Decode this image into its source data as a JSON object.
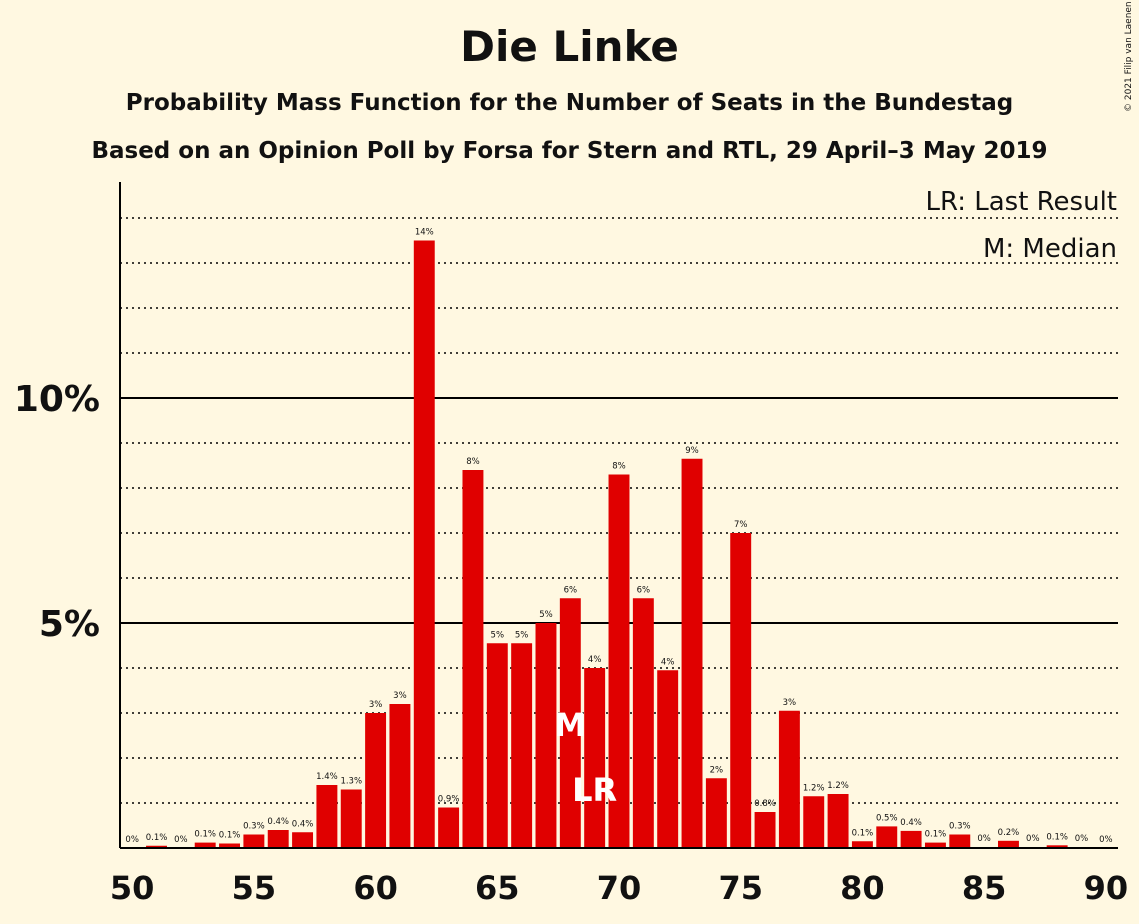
{
  "header": {
    "title": "Die Linke",
    "subtitle": "Probability Mass Function for the Number of Seats in the Bundestag",
    "subtitle2": "Based on an Opinion Poll by Forsa for Stern and RTL, 29 April–3 May 2019",
    "copyright": "© 2021 Filip van Laenen"
  },
  "legend": {
    "last_result": "LR: Last Result",
    "median": "M: Median"
  },
  "chart_data": {
    "type": "bar",
    "x": [
      50,
      51,
      52,
      53,
      54,
      55,
      56,
      57,
      58,
      59,
      60,
      61,
      62,
      63,
      64,
      65,
      66,
      67,
      68,
      69,
      70,
      71,
      72,
      73,
      74,
      75,
      76,
      77,
      78,
      79,
      80,
      81,
      82,
      83,
      84,
      85,
      86,
      87,
      88,
      89,
      90
    ],
    "values": [
      0,
      0.05,
      0,
      0.12,
      0.1,
      0.3,
      0.4,
      0.35,
      1.4,
      1.3,
      3.0,
      3.2,
      13.5,
      0.9,
      8.4,
      4.55,
      4.55,
      5.0,
      5.55,
      4.0,
      8.3,
      5.55,
      3.95,
      8.65,
      1.55,
      7.0,
      0.8,
      3.05,
      1.15,
      1.2,
      0.15,
      0.48,
      0.38,
      0.12,
      0.3,
      0.02,
      0.16,
      0.02,
      0.06,
      0.02,
      0
    ],
    "data_labels": [
      "0%",
      "0.1%",
      "0%",
      "0.1%",
      "0.1%",
      "0.3%",
      "0.4%",
      "0.4%",
      "1.4%",
      "1.3%",
      "3%",
      "3%",
      "14%",
      "0.9%",
      "8%",
      "5%",
      "5%",
      "5%",
      "6%",
      "4%",
      "8%",
      "6%",
      "4%",
      "9%",
      "2%",
      "7%",
      "0.8%",
      "3%",
      "1.2%",
      "1.2%",
      "0.1%",
      "0.5%",
      "0.4%",
      "0.1%",
      "0.3%",
      "0%",
      "0.2%",
      "0%",
      "0.1%",
      "0%",
      "0%"
    ],
    "xticks": [
      "50",
      "55",
      "60",
      "65",
      "70",
      "75",
      "80",
      "85",
      "90"
    ],
    "yticks": [
      "5%",
      "10%"
    ],
    "ylim": [
      0,
      14.8
    ],
    "xlim": [
      49.5,
      90.5
    ],
    "bar_color": "#E00000",
    "background": "#FFF8E1",
    "grid": "dotted minor every 1%, solid major at 5% and 10%",
    "median_seat": 68,
    "median_label": "M",
    "last_result_seat": 69,
    "last_result_label": "LR",
    "legend_placement": "top-right"
  }
}
